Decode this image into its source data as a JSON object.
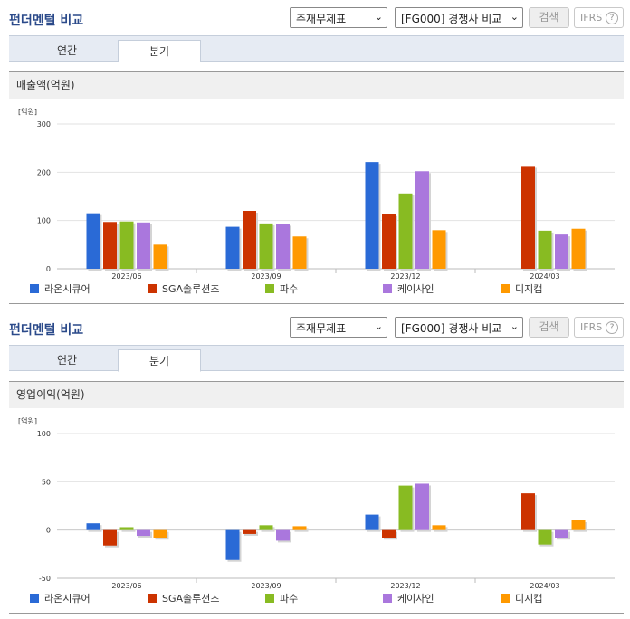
{
  "panels": [
    {
      "title": "펀더멘털 비교",
      "select1": "주재무제표",
      "select2": "[FG000] 경쟁사 비교",
      "search_label": "검색",
      "ifrs_label": "IFRS",
      "tabs": [
        "연간",
        "분기"
      ],
      "active_tab": "분기",
      "section_title": "매출액(억원)"
    },
    {
      "title": "펀더멘털 비교",
      "select1": "주재무제표",
      "select2": "[FG000] 경쟁사 비교",
      "search_label": "검색",
      "ifrs_label": "IFRS",
      "tabs": [
        "연간",
        "분기"
      ],
      "active_tab": "분기",
      "section_title": "영업이익(억원)"
    }
  ],
  "colors": {
    "라온시큐어": "#2a6ad6",
    "SGA솔루션즈": "#cc3300",
    "파수": "#88bb22",
    "케이사인": "#aa77dd",
    "디지캡": "#ff9900"
  },
  "chart_data": [
    {
      "type": "bar",
      "unit_label": "[억원]",
      "categories": [
        "2023/06",
        "2023/09",
        "2023/12",
        "2024/03"
      ],
      "ylim": [
        0,
        300
      ],
      "yticks": [
        0,
        100,
        200,
        300
      ],
      "grid": true,
      "legend": "bottom",
      "series": [
        {
          "name": "라온시큐어",
          "values": [
            115,
            87,
            221,
            null
          ]
        },
        {
          "name": "SGA솔루션즈",
          "values": [
            97,
            120,
            113,
            213
          ]
        },
        {
          "name": "파수",
          "values": [
            98,
            94,
            156,
            79
          ]
        },
        {
          "name": "케이사인",
          "values": [
            96,
            93,
            202,
            71
          ]
        },
        {
          "name": "디지캡",
          "values": [
            50,
            67,
            80,
            83
          ]
        }
      ]
    },
    {
      "type": "bar",
      "unit_label": "[억원]",
      "categories": [
        "2023/06",
        "2023/09",
        "2023/12",
        "2024/03"
      ],
      "ylim": [
        -50,
        100
      ],
      "yticks": [
        -50,
        0,
        50,
        100
      ],
      "grid": true,
      "legend": "bottom",
      "series": [
        {
          "name": "라온시큐어",
          "values": [
            7,
            -31,
            16,
            null
          ]
        },
        {
          "name": "SGA솔루션즈",
          "values": [
            -16,
            -4,
            -8,
            38
          ]
        },
        {
          "name": "파수",
          "values": [
            3,
            5,
            46,
            -15
          ]
        },
        {
          "name": "케이사인",
          "values": [
            -6,
            -11,
            48,
            -8
          ]
        },
        {
          "name": "디지캡",
          "values": [
            -8,
            4,
            5,
            10
          ]
        }
      ]
    }
  ]
}
